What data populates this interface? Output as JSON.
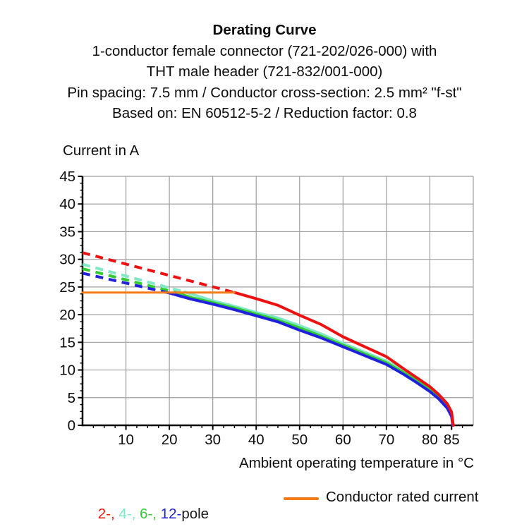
{
  "title": {
    "line1": "Derating Curve",
    "line2": "1-conductor female connector (721-202/026-000) with",
    "line3": "THT male header (721-832/001-000)",
    "line4": "Pin spacing: 7.5 mm / Conductor cross-section: 2.5 mm² \"f-st\"",
    "line5": "Based on: EN 60512-5-2 / Reduction factor: 0.8"
  },
  "chart_data": {
    "type": "line",
    "title": "Derating Curve",
    "xlabel": "Ambient operating temperature in °C",
    "ylabel": "Current in A",
    "xlim": [
      0,
      90
    ],
    "ylim": [
      0,
      45
    ],
    "x_ticks": [
      10,
      20,
      30,
      40,
      50,
      60,
      70,
      80,
      85
    ],
    "y_ticks": [
      0,
      5,
      10,
      15,
      20,
      25,
      30,
      35,
      40,
      45
    ],
    "x_minor_step": 2.5,
    "y_minor_step": 1.25,
    "x_grid_step": 10,
    "y_grid_step": 5,
    "grid": true,
    "legend_position": "bottom",
    "colors": {
      "pole2": "#ee1111",
      "pole4": "#7fe8c4",
      "pole6": "#33cc33",
      "pole12": "#2121dd",
      "rated": "#f57b17",
      "grid": "#9e9e9e",
      "axis": "#000000"
    },
    "series": [
      {
        "name": "2-pole (above rated, dashed)",
        "color": "#ee1111",
        "dash": true,
        "width": 4,
        "points": [
          [
            0,
            31.2
          ],
          [
            35,
            24
          ]
        ]
      },
      {
        "name": "4-pole (above rated, dashed)",
        "color": "#7fe8c4",
        "dash": true,
        "width": 4,
        "points": [
          [
            0,
            29.1
          ],
          [
            23.5,
            24.1
          ]
        ]
      },
      {
        "name": "6-pole (above rated, dashed)",
        "color": "#33cc33",
        "dash": true,
        "width": 4,
        "points": [
          [
            0,
            28.3
          ],
          [
            21.5,
            24.0
          ]
        ]
      },
      {
        "name": "12-pole (above rated, dashed)",
        "color": "#2121dd",
        "dash": true,
        "width": 4,
        "points": [
          [
            0,
            27.5
          ],
          [
            20,
            23.9
          ]
        ]
      },
      {
        "name": "4-pole",
        "color": "#7fe8c4",
        "dash": false,
        "width": 4,
        "points": [
          [
            23.5,
            24.1
          ],
          [
            30,
            22.5
          ],
          [
            35,
            21.5
          ],
          [
            40,
            20.4
          ],
          [
            45,
            19.4
          ],
          [
            50,
            18.0
          ],
          [
            55,
            16.5
          ],
          [
            60,
            14.8
          ],
          [
            65,
            13.2
          ],
          [
            70,
            11.6
          ],
          [
            74,
            9.8
          ],
          [
            77,
            8.3
          ],
          [
            80,
            6.6
          ],
          [
            82,
            5.2
          ],
          [
            84,
            3.5
          ],
          [
            85,
            2.0
          ],
          [
            85.3,
            0
          ]
        ]
      },
      {
        "name": "6-pole",
        "color": "#33cc33",
        "dash": false,
        "width": 4,
        "points": [
          [
            21.5,
            24.0
          ],
          [
            25,
            23.1
          ],
          [
            30,
            22.2
          ],
          [
            35,
            21.2
          ],
          [
            40,
            20.1
          ],
          [
            45,
            19.0
          ],
          [
            50,
            17.6
          ],
          [
            55,
            16.1
          ],
          [
            60,
            14.5
          ],
          [
            65,
            12.9
          ],
          [
            70,
            11.3
          ],
          [
            74,
            9.5
          ],
          [
            77,
            8.0
          ],
          [
            80,
            6.4
          ],
          [
            82,
            5.0
          ],
          [
            84,
            3.3
          ],
          [
            85,
            1.8
          ],
          [
            85.3,
            0
          ]
        ]
      },
      {
        "name": "12-pole",
        "color": "#2121dd",
        "dash": false,
        "width": 4,
        "points": [
          [
            20,
            23.9
          ],
          [
            25,
            22.8
          ],
          [
            30,
            21.9
          ],
          [
            35,
            20.9
          ],
          [
            40,
            19.8
          ],
          [
            45,
            18.7
          ],
          [
            50,
            17.2
          ],
          [
            55,
            15.8
          ],
          [
            60,
            14.2
          ],
          [
            65,
            12.6
          ],
          [
            70,
            11.0
          ],
          [
            74,
            9.2
          ],
          [
            77,
            7.7
          ],
          [
            80,
            6.1
          ],
          [
            82,
            4.8
          ],
          [
            84,
            3.1
          ],
          [
            85,
            1.6
          ],
          [
            85.3,
            0
          ]
        ]
      },
      {
        "name": "2-pole",
        "color": "#ee1111",
        "dash": false,
        "width": 4,
        "points": [
          [
            35,
            24
          ],
          [
            40,
            22.9
          ],
          [
            45,
            21.7
          ],
          [
            50,
            19.9
          ],
          [
            55,
            18.2
          ],
          [
            60,
            16.0
          ],
          [
            65,
            14.2
          ],
          [
            70,
            12.4
          ],
          [
            74,
            10.2
          ],
          [
            77,
            8.6
          ],
          [
            80,
            7.0
          ],
          [
            82,
            5.6
          ],
          [
            84,
            3.9
          ],
          [
            85,
            2.4
          ],
          [
            85.4,
            0
          ]
        ]
      },
      {
        "name": "Conductor rated current",
        "color": "#f57b17",
        "dash": false,
        "width": 3,
        "points": [
          [
            0,
            24
          ],
          [
            35,
            24
          ]
        ]
      }
    ]
  },
  "legend": {
    "poles": {
      "parts": [
        {
          "text": "2-, ",
          "color": "#ee1111"
        },
        {
          "text": "4-, ",
          "color": "#7fe8c4"
        },
        {
          "text": "6-, ",
          "color": "#33cc33"
        },
        {
          "text": "12-",
          "color": "#2121dd"
        },
        {
          "text": "pole",
          "color": "#1a1a1a"
        }
      ]
    },
    "rated": {
      "label": "Conductor rated current",
      "line_color": "#f57b17"
    }
  }
}
